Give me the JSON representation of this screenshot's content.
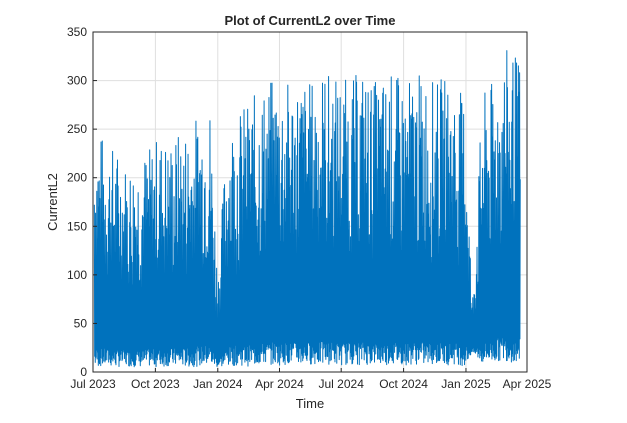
{
  "chart_data": {
    "type": "line",
    "title": "Plot of CurrentL2 over Time",
    "xlabel": "Time",
    "ylabel": "CurrentL2",
    "xlim": [
      "2023-07-01",
      "2025-04-01"
    ],
    "ylim": [
      0,
      350
    ],
    "grid": true,
    "color": "#0072BD",
    "x_ticks": [
      {
        "label": "Jul 2023",
        "date": "2023-07-01"
      },
      {
        "label": "Oct 2023",
        "date": "2023-10-01"
      },
      {
        "label": "Jan 2024",
        "date": "2024-01-01"
      },
      {
        "label": "Apr 2024",
        "date": "2024-04-01"
      },
      {
        "label": "Jul 2024",
        "date": "2024-07-01"
      },
      {
        "label": "Oct 2024",
        "date": "2024-10-01"
      },
      {
        "label": "Jan 2025",
        "date": "2025-01-01"
      },
      {
        "label": "Apr 2025",
        "date": "2025-04-01"
      }
    ],
    "y_ticks": [
      0,
      50,
      100,
      150,
      200,
      250,
      300,
      350
    ],
    "series": [
      {
        "x": [
          "2023-07-03",
          "2023-07-20",
          "2023-08-05",
          "2023-08-20",
          "2023-09-05",
          "2023-09-20",
          "2023-10-05",
          "2023-10-20",
          "2023-11-05",
          "2023-11-20",
          "2023-12-05",
          "2023-12-20",
          "2024-01-01",
          "2024-01-15",
          "2024-02-01",
          "2024-02-15",
          "2024-03-01",
          "2024-03-15",
          "2024-04-01",
          "2024-04-15",
          "2024-05-01",
          "2024-05-15",
          "2024-06-01",
          "2024-06-15",
          "2024-07-01",
          "2024-07-15",
          "2024-08-01",
          "2024-08-15",
          "2024-09-01",
          "2024-09-15",
          "2024-10-01",
          "2024-10-15",
          "2024-11-01",
          "2024-11-15",
          "2024-12-01",
          "2024-12-15",
          "2025-01-01",
          "2025-01-10",
          "2025-01-25",
          "2025-02-10",
          "2025-02-25",
          "2025-03-10",
          "2025-03-22"
        ],
        "y_high": [
          255,
          240,
          230,
          215,
          225,
          230,
          245,
          240,
          248,
          255,
          270,
          285,
          100,
          255,
          270,
          280,
          290,
          300,
          305,
          300,
          305,
          300,
          315,
          310,
          305,
          300,
          315,
          300,
          305,
          310,
          300,
          305,
          310,
          300,
          305,
          295,
          285,
          70,
          285,
          300,
          330,
          335,
          320
        ],
        "y_low": [
          5,
          6,
          5,
          6,
          5,
          6,
          5,
          6,
          6,
          5,
          6,
          7,
          5,
          6,
          7,
          6,
          7,
          8,
          7,
          8,
          7,
          8,
          7,
          8,
          7,
          8,
          7,
          8,
          7,
          8,
          7,
          8,
          7,
          8,
          7,
          8,
          6,
          20,
          8,
          10,
          12,
          10,
          10
        ]
      }
    ]
  }
}
